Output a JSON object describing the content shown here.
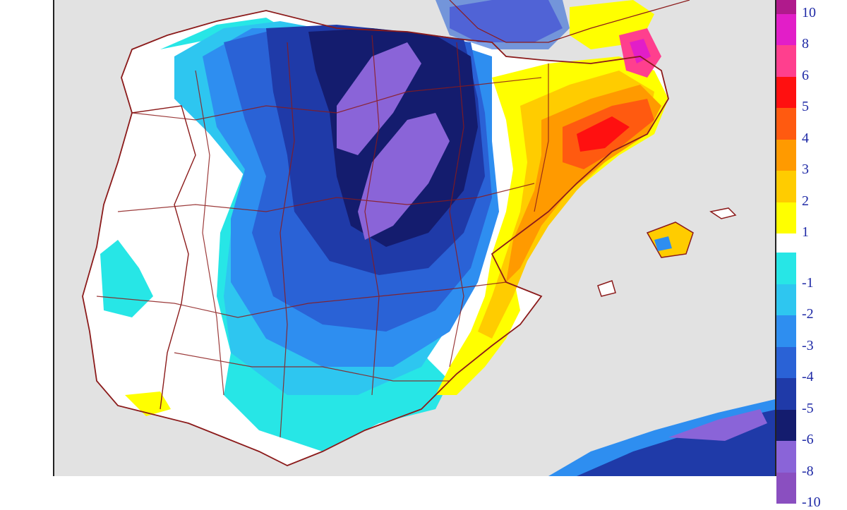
{
  "map": {
    "colors": {
      "sea": "#e2e2e2",
      "land_neutral": "#ffffff",
      "borders": "#8b1a1a"
    }
  },
  "legend": {
    "positive": [
      {
        "label": "10",
        "color": "#b01a8c"
      },
      {
        "label": "8",
        "color": "#e21ec8"
      },
      {
        "label": "6",
        "color": "#ff3f8e"
      },
      {
        "label": "5",
        "color": "#ff1010"
      },
      {
        "label": "4",
        "color": "#ff5a10"
      },
      {
        "label": "3",
        "color": "#ff9a00"
      },
      {
        "label": "2",
        "color": "#ffcc00"
      },
      {
        "label": "1",
        "color": "#ffff00"
      }
    ],
    "negative": [
      {
        "label": "-1",
        "color": "#27e6e6"
      },
      {
        "label": "-2",
        "color": "#2ec6f0"
      },
      {
        "label": "-3",
        "color": "#2e8ef0"
      },
      {
        "label": "-4",
        "color": "#2a62d6"
      },
      {
        "label": "-5",
        "color": "#1f3aa8"
      },
      {
        "label": "-6",
        "color": "#141c6e"
      },
      {
        "label": "-8",
        "color": "#8a64d8"
      },
      {
        "label": "-10",
        "color": "#8a4fc0"
      }
    ]
  }
}
